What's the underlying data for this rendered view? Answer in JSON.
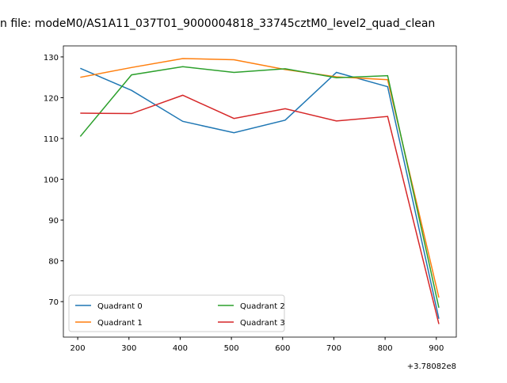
{
  "chart_data": {
    "type": "line",
    "title": "n file: modeM0/AS1A11_037T01_9000004818_33745cztM0_level2_quad_clean",
    "x_offset_label": "+3.78082e8",
    "x": [
      205,
      305,
      405,
      505,
      605,
      705,
      805,
      905
    ],
    "series": [
      {
        "name": "Quadrant 0",
        "color": "#1f77b4",
        "values": [
          127.2,
          121.8,
          114.2,
          111.4,
          114.5,
          126.2,
          122.7,
          65.8
        ]
      },
      {
        "name": "Quadrant 1",
        "color": "#ff7f0e",
        "values": [
          125.0,
          127.4,
          129.6,
          129.3,
          126.9,
          125.1,
          124.4,
          71.0
        ]
      },
      {
        "name": "Quadrant 2",
        "color": "#2ca02c",
        "values": [
          110.5,
          125.6,
          127.6,
          126.2,
          127.1,
          124.9,
          125.4,
          68.5
        ]
      },
      {
        "name": "Quadrant 3",
        "color": "#d62728",
        "values": [
          116.2,
          116.1,
          120.6,
          114.9,
          117.3,
          114.3,
          115.4,
          64.5
        ]
      }
    ],
    "xlim": [
      172,
      939
    ],
    "xticks": [
      200,
      300,
      400,
      500,
      600,
      700,
      800,
      900
    ],
    "ylim": [
      61.3,
      132.7
    ],
    "yticks": [
      70,
      80,
      90,
      100,
      110,
      120,
      130
    ],
    "legend": "lower left",
    "grid": false
  }
}
